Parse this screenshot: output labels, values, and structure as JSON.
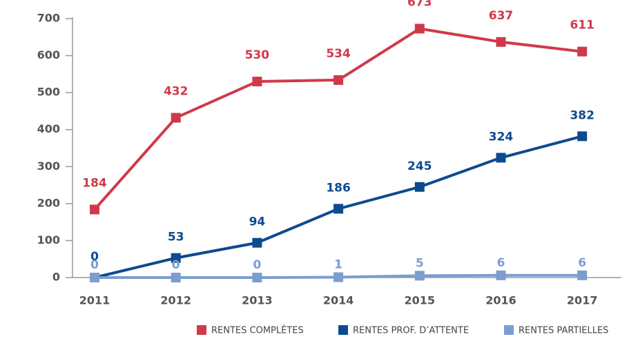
{
  "chart_data": {
    "type": "line",
    "categories": [
      "2011",
      "2012",
      "2013",
      "2014",
      "2015",
      "2016",
      "2017"
    ],
    "series": [
      {
        "name": "RENTES COMPLÈTES",
        "color": "#d0394a",
        "values": [
          184,
          432,
          530,
          534,
          673,
          637,
          611
        ]
      },
      {
        "name": "RENTES PROF. D’ATTENTE",
        "color": "#0d4a8f",
        "values": [
          0,
          53,
          94,
          186,
          245,
          324,
          382
        ]
      },
      {
        "name": "RENTES PARTIELLES",
        "color": "#7b9dd0",
        "values": [
          0,
          0,
          0,
          1,
          5,
          6,
          6
        ]
      }
    ],
    "ylim": [
      0,
      700
    ],
    "yticks": [
      0,
      100,
      200,
      300,
      400,
      500,
      600,
      700
    ],
    "legend": "bottom-right"
  }
}
